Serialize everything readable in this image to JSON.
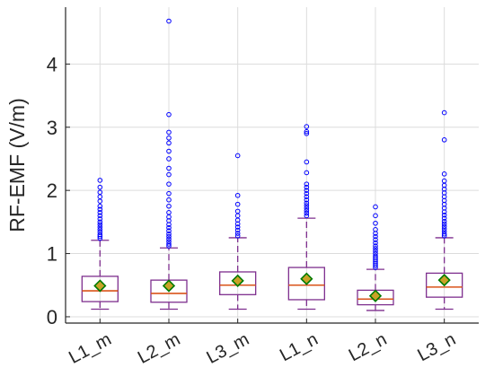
{
  "chart_data": {
    "type": "box",
    "ylabel": "RF-EMF (V/m)",
    "xlabel": "",
    "title": "",
    "ylim": [
      -0.1,
      4.9
    ],
    "yticks": [
      0,
      1,
      2,
      3,
      4
    ],
    "grid": true,
    "categories": [
      "L1_m",
      "L2_m",
      "L3_m",
      "L1_n",
      "L2_n",
      "L3_n"
    ],
    "boxes": [
      {
        "category": "L1_m",
        "whisker_low": 0.12,
        "q1": 0.24,
        "median": 0.41,
        "q3": 0.64,
        "whisker_high": 1.21,
        "mean": 0.49,
        "outliers": [
          1.24,
          1.27,
          1.3,
          1.34,
          1.38,
          1.42,
          1.46,
          1.5,
          1.55,
          1.6,
          1.65,
          1.7,
          1.75,
          1.83,
          1.9,
          1.97,
          2.05,
          2.16
        ]
      },
      {
        "category": "L2_m",
        "whisker_low": 0.12,
        "q1": 0.23,
        "median": 0.37,
        "q3": 0.58,
        "whisker_high": 1.09,
        "mean": 0.49,
        "outliers": [
          1.12,
          1.15,
          1.19,
          1.23,
          1.27,
          1.31,
          1.36,
          1.41,
          1.46,
          1.52,
          1.58,
          1.65,
          1.75,
          1.85,
          1.95,
          2.1,
          2.25,
          2.35,
          2.5,
          2.62,
          2.75,
          2.83,
          2.92,
          3.2,
          4.68
        ]
      },
      {
        "category": "L3_m",
        "whisker_low": 0.12,
        "q1": 0.35,
        "median": 0.5,
        "q3": 0.71,
        "whisker_high": 1.25,
        "mean": 0.57,
        "outliers": [
          1.28,
          1.32,
          1.37,
          1.42,
          1.47,
          1.53,
          1.6,
          1.67,
          1.78,
          1.92,
          2.55
        ]
      },
      {
        "category": "L1_n",
        "whisker_low": 0.12,
        "q1": 0.27,
        "median": 0.5,
        "q3": 0.78,
        "whisker_high": 1.56,
        "mean": 0.6,
        "outliers": [
          1.6,
          1.64,
          1.68,
          1.72,
          1.76,
          1.8,
          1.85,
          1.9,
          1.95,
          2.0,
          2.05,
          2.1,
          2.28,
          2.45,
          2.9,
          2.93,
          3.01
        ]
      },
      {
        "category": "L2_n",
        "whisker_low": 0.1,
        "q1": 0.19,
        "median": 0.28,
        "q3": 0.42,
        "whisker_high": 0.75,
        "mean": 0.33,
        "outliers": [
          0.78,
          0.81,
          0.84,
          0.87,
          0.9,
          0.93,
          0.96,
          1.0,
          1.04,
          1.08,
          1.12,
          1.17,
          1.22,
          1.27,
          1.32,
          1.38,
          1.48,
          1.6,
          1.74
        ]
      },
      {
        "category": "L3_n",
        "whisker_low": 0.12,
        "q1": 0.31,
        "median": 0.47,
        "q3": 0.69,
        "whisker_high": 1.25,
        "mean": 0.58,
        "outliers": [
          1.28,
          1.31,
          1.35,
          1.39,
          1.43,
          1.47,
          1.51,
          1.56,
          1.61,
          1.66,
          1.72,
          1.78,
          1.84,
          1.9,
          1.96,
          2.02,
          2.08,
          2.15,
          2.26,
          2.8,
          3.23
        ]
      }
    ],
    "colors": {
      "box": "#7e2f8e",
      "median": "#d95319",
      "whisker": "#7e2f8e",
      "outlier": "#0000ff",
      "mean_fill": "#c9a227",
      "mean_edge": "#007a00",
      "grid": "#dcdcdc",
      "axis": "#262626"
    }
  }
}
